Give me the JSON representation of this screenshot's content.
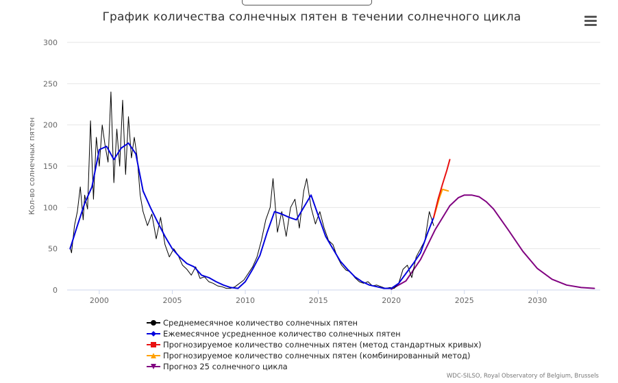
{
  "window": {
    "title": "График количества солнечных пятен в течении солнечного цикла"
  },
  "menu": {
    "icon": "hamburger-menu-icon"
  },
  "credits": "WDC-SILSO, Royal Observatory of Belgium, Brussels",
  "chart_data": {
    "type": "line",
    "title": "График количества солнечных пятен в течении солнечного цикла",
    "xlabel": "",
    "ylabel": "Кол-во солнечных пятен",
    "xlim": [
      1997.8,
      2034.3
    ],
    "ylim": [
      0,
      300
    ],
    "x_ticks": [
      "2000",
      "2005",
      "2010",
      "2015",
      "2020",
      "2025",
      "2030"
    ],
    "y_ticks": [
      "0",
      "50",
      "100",
      "150",
      "200",
      "250",
      "300"
    ],
    "grid": true,
    "legend_position": "bottom",
    "series": [
      {
        "name": "Среднемесячное количество солнечных пятен",
        "color": "#000000",
        "marker": "circle",
        "x": [
          1998.0,
          1998.1,
          1998.3,
          1998.5,
          1998.7,
          1998.9,
          1999.0,
          1999.2,
          1999.4,
          1999.6,
          1999.8,
          2000.0,
          2000.2,
          2000.4,
          2000.6,
          2000.8,
          2001.0,
          2001.2,
          2001.4,
          2001.6,
          2001.8,
          2002.0,
          2002.2,
          2002.4,
          2002.6,
          2002.8,
          2003.0,
          2003.3,
          2003.6,
          2003.9,
          2004.2,
          2004.5,
          2004.8,
          2005.1,
          2005.4,
          2005.7,
          2006.0,
          2006.3,
          2006.6,
          2006.9,
          2007.2,
          2007.5,
          2007.8,
          2008.1,
          2008.4,
          2008.7,
          2009.0,
          2009.3,
          2009.6,
          2009.9,
          2010.2,
          2010.5,
          2010.8,
          2011.1,
          2011.4,
          2011.7,
          2011.9,
          2012.2,
          2012.5,
          2012.8,
          2013.1,
          2013.4,
          2013.7,
          2014.0,
          2014.2,
          2014.5,
          2014.8,
          2015.1,
          2015.4,
          2015.7,
          2016.0,
          2016.3,
          2016.6,
          2016.9,
          2017.2,
          2017.5,
          2017.8,
          2018.1,
          2018.4,
          2018.7,
          2019.0,
          2019.3,
          2019.6,
          2019.9,
          2020.2,
          2020.5,
          2020.8,
          2021.1,
          2021.4,
          2021.7,
          2022.0,
          2022.3,
          2022.6,
          2022.9
        ],
        "y": [
          52,
          45,
          78,
          95,
          125,
          85,
          115,
          98,
          205,
          110,
          185,
          150,
          200,
          175,
          155,
          240,
          130,
          195,
          150,
          230,
          140,
          210,
          160,
          185,
          160,
          115,
          95,
          78,
          92,
          62,
          88,
          55,
          40,
          50,
          42,
          30,
          25,
          18,
          28,
          14,
          16,
          10,
          8,
          5,
          4,
          2,
          2,
          4,
          8,
          12,
          20,
          28,
          40,
          60,
          85,
          100,
          135,
          70,
          95,
          65,
          100,
          110,
          75,
          120,
          135,
          100,
          80,
          95,
          75,
          60,
          55,
          40,
          30,
          24,
          22,
          15,
          10,
          8,
          10,
          5,
          6,
          4,
          2,
          3,
          2,
          8,
          25,
          30,
          15,
          40,
          50,
          60,
          95,
          78
        ]
      },
      {
        "name": "Ежемесячное усредненное количество солнечных пятен",
        "color": "#0000dd",
        "marker": "diamond",
        "x": [
          1998.0,
          1998.5,
          1999.0,
          1999.5,
          2000.0,
          2000.5,
          2001.0,
          2001.5,
          2002.0,
          2002.5,
          2003.0,
          2003.5,
          2004.0,
          2004.5,
          2005.0,
          2005.5,
          2006.0,
          2006.5,
          2007.0,
          2007.5,
          2008.0,
          2008.5,
          2009.0,
          2009.5,
          2010.0,
          2010.5,
          2011.0,
          2011.5,
          2012.0,
          2012.5,
          2013.0,
          2013.5,
          2014.0,
          2014.5,
          2015.0,
          2015.5,
          2016.0,
          2016.5,
          2017.0,
          2017.5,
          2018.0,
          2018.5,
          2019.0,
          2019.5,
          2020.0,
          2020.5,
          2021.0,
          2021.5,
          2022.0,
          2022.5,
          2022.9
        ],
        "y": [
          50,
          78,
          105,
          125,
          170,
          174,
          158,
          172,
          178,
          165,
          120,
          100,
          82,
          65,
          50,
          40,
          32,
          28,
          18,
          15,
          10,
          6,
          3,
          2,
          10,
          25,
          42,
          70,
          95,
          92,
          88,
          85,
          100,
          115,
          90,
          65,
          50,
          35,
          25,
          16,
          10,
          6,
          4,
          2,
          2,
          8,
          20,
          32,
          45,
          70,
          88
        ]
      },
      {
        "name": "Прогнозируемое количество солнечных пятен (метод стандартных кривых)",
        "color": "#e81010",
        "marker": "square",
        "x": [
          2022.9,
          2023.2,
          2023.5,
          2023.8,
          2024.0
        ],
        "y": [
          88,
          110,
          128,
          145,
          158
        ]
      },
      {
        "name": "Прогнозируемое количество солнечных пятен (комбинированный метод)",
        "color": "#ffa000",
        "marker": "triangle",
        "x": [
          2022.9,
          2023.1,
          2023.3,
          2023.5,
          2023.7,
          2023.9
        ],
        "y": [
          88,
          100,
          112,
          122,
          121,
          120
        ]
      },
      {
        "name": "Прогноз 25 солнечного цикла",
        "color": "#800080",
        "marker": "triangle-down",
        "x": [
          2020.0,
          2021.0,
          2022.0,
          2023.0,
          2024.0,
          2024.6,
          2025.0,
          2025.5,
          2026.0,
          2026.5,
          2027.0,
          2028.0,
          2029.0,
          2030.0,
          2031.0,
          2032.0,
          2033.0,
          2033.9
        ],
        "y": [
          1,
          11,
          37,
          73,
          102,
          112,
          115,
          115,
          113,
          107,
          98,
          73,
          47,
          26,
          13,
          6,
          3,
          2
        ]
      }
    ]
  }
}
